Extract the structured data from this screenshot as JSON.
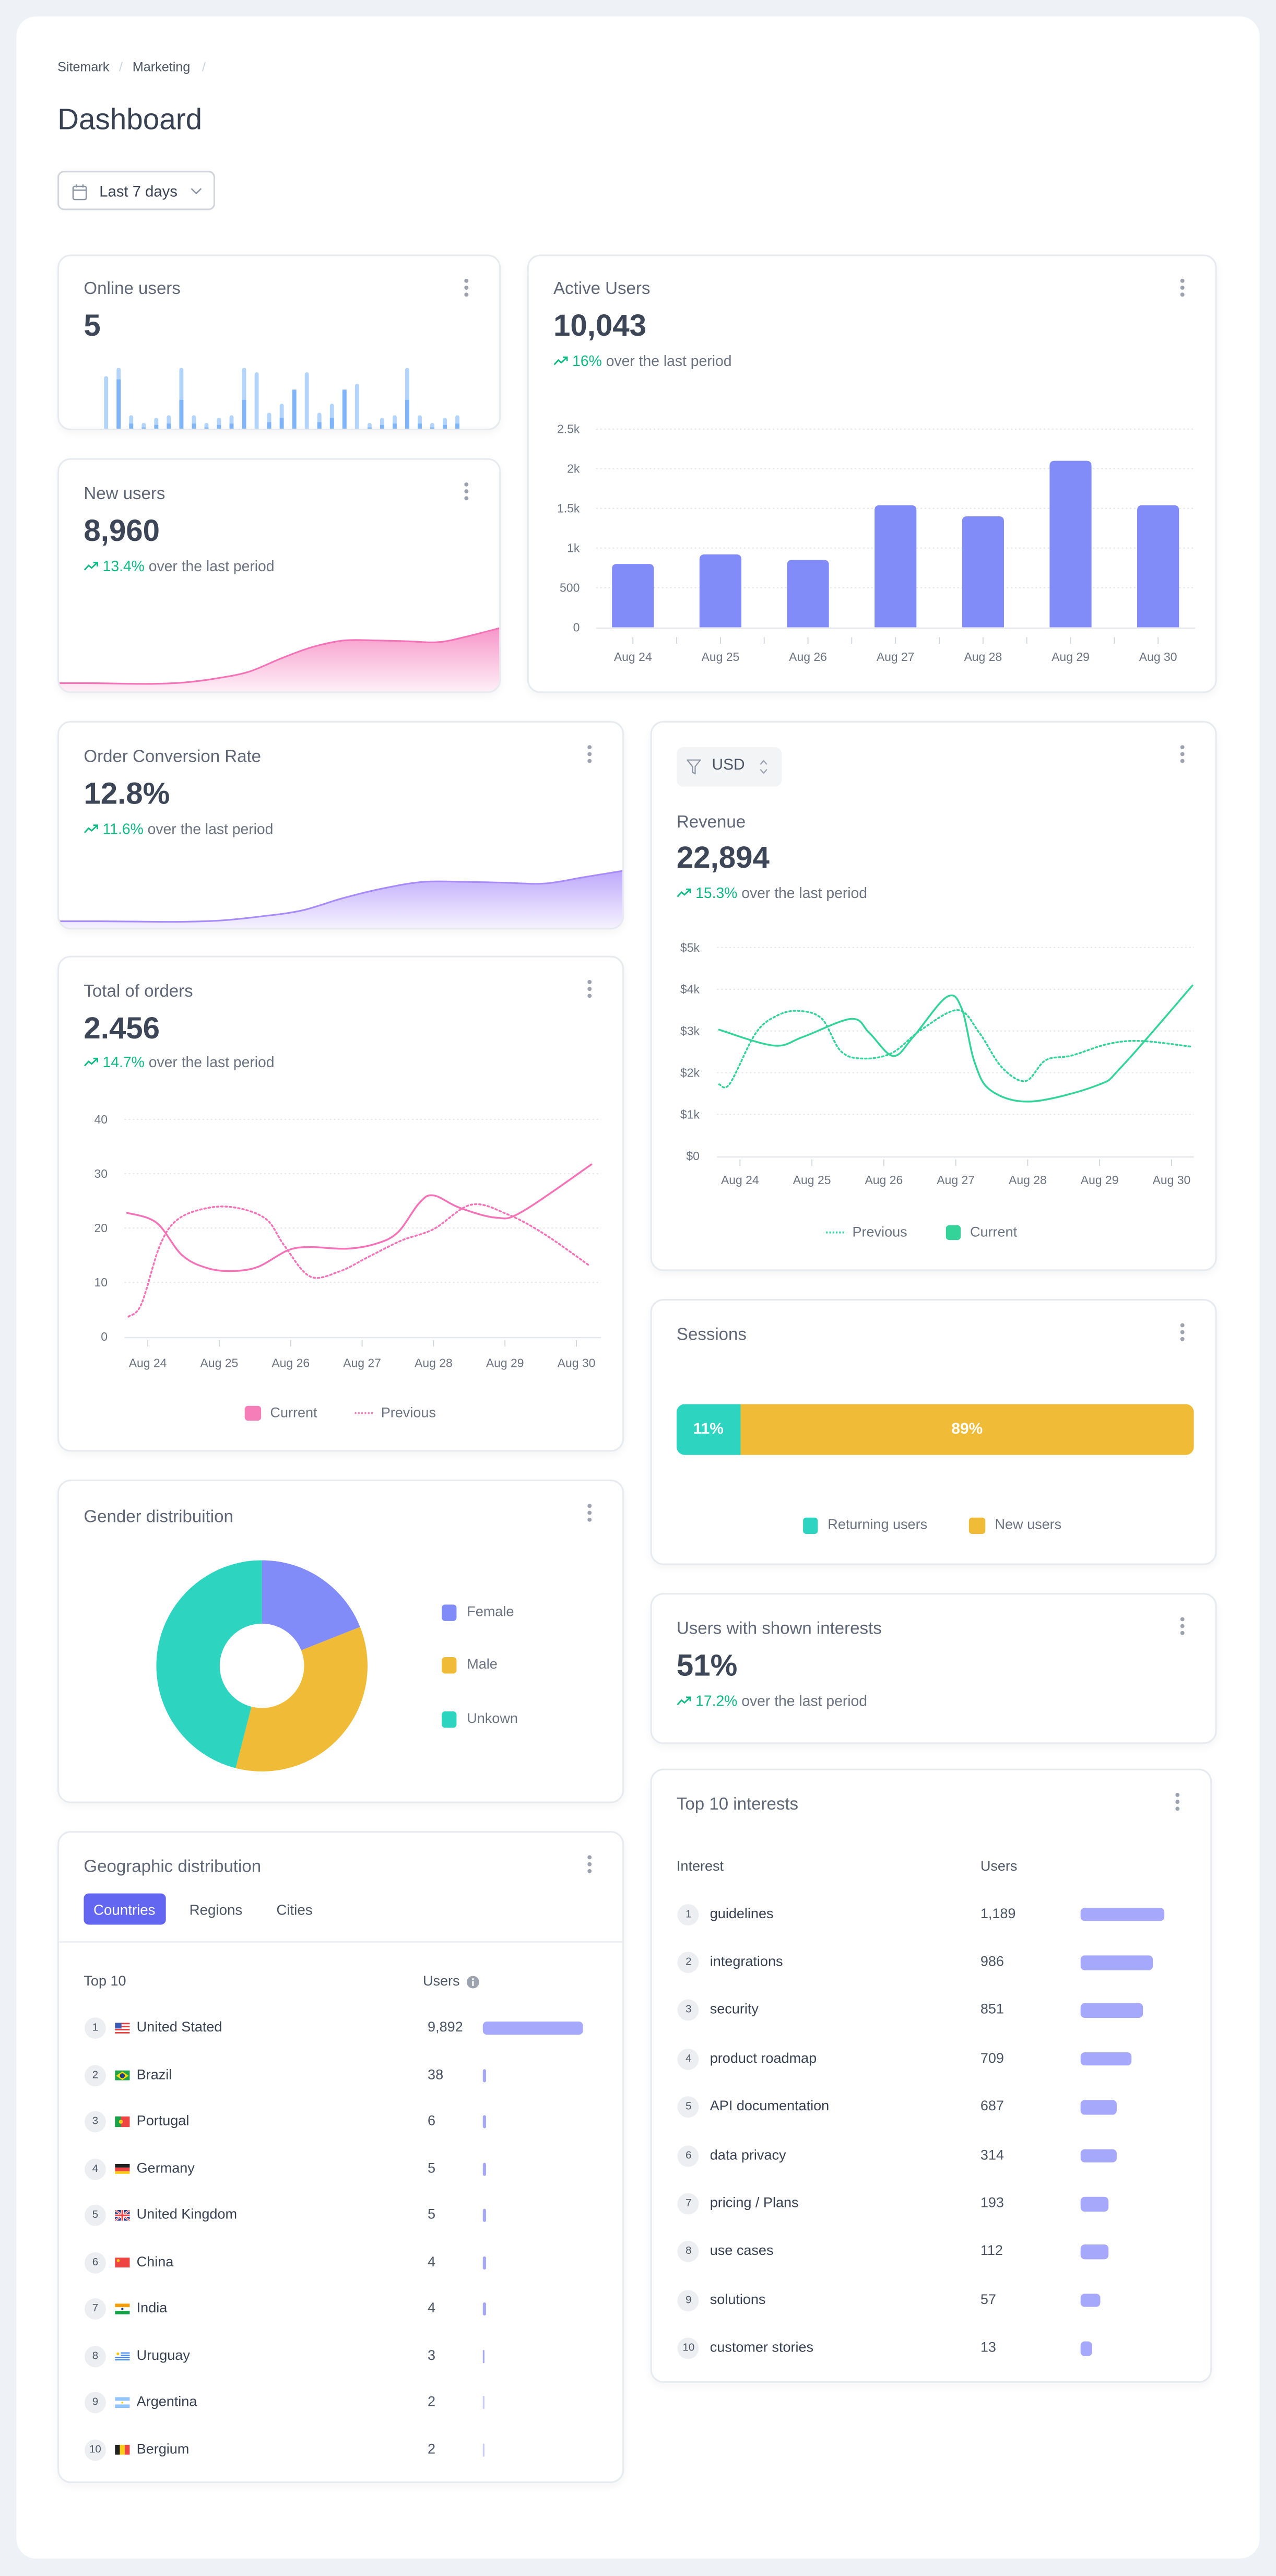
{
  "breadcrumb": [
    "Sitemark",
    "Marketing"
  ],
  "page_title": "Dashboard",
  "date_filter": {
    "label": "Last 7 days",
    "icon": "calendar-icon"
  },
  "colors": {
    "background": "#eef2f7",
    "positive": "#10b981",
    "indigo": "#818cf8",
    "pink": "#f472b6",
    "purple": "#a78bfa",
    "teal": "#2dd4bf",
    "green": "#34d399",
    "yellow": "#f0bc37",
    "online_light": "#b3d4fb",
    "online_dark": "#7fb5f8",
    "tab_active": "#6366f1",
    "row_bar": "#a5a8fb"
  },
  "online_users": {
    "title": "Online users",
    "value": "5"
  },
  "new_users": {
    "title": "New users",
    "value": "8,960",
    "trend": "13.4%",
    "trend_text": "over the last period"
  },
  "active_users": {
    "title": "Active Users",
    "value": "10,043",
    "trend": "16%",
    "trend_text": "over the last period"
  },
  "conversion": {
    "title": "Order Conversion Rate",
    "value": "12.8%",
    "trend": "11.6%",
    "trend_text": "over the last period"
  },
  "orders": {
    "title": "Total of orders",
    "value": "2.456",
    "trend": "14.7%",
    "trend_text": "over the last period"
  },
  "revenue": {
    "currency": "USD",
    "title": "Revenue",
    "value": "22,894",
    "trend": "15.3%",
    "trend_text": "over the last period"
  },
  "sessions": {
    "title": "Sessions"
  },
  "gender": {
    "title": "Gender distribuition"
  },
  "interest_users": {
    "title": "Users with shown interests",
    "value": "51%",
    "trend": "17.2%",
    "trend_text": "over the last period"
  },
  "geo": {
    "title": "Geographic distribution",
    "tabs": [
      {
        "label": "Countries",
        "active": true
      },
      {
        "label": "Regions",
        "active": false
      },
      {
        "label": "Cities",
        "active": false
      }
    ],
    "col_name": "Top 10",
    "col_users": "Users",
    "rows": [
      {
        "rank": "1",
        "flag": "us",
        "name": "United Stated",
        "users": "9,892",
        "bar_fill": 1.0
      },
      {
        "rank": "2",
        "flag": "br",
        "name": "Brazil",
        "users": "38",
        "bar_fill": 0.03
      },
      {
        "rank": "3",
        "flag": "pt",
        "name": "Portugal",
        "users": "6",
        "bar_fill": 0.03
      },
      {
        "rank": "4",
        "flag": "de",
        "name": "Germany",
        "users": "5",
        "bar_fill": 0.03
      },
      {
        "rank": "5",
        "flag": "gb",
        "name": "United Kingdom",
        "users": "5",
        "bar_fill": 0.03
      },
      {
        "rank": "6",
        "flag": "cn",
        "name": "China",
        "users": "4",
        "bar_fill": 0.03
      },
      {
        "rank": "7",
        "flag": "in",
        "name": "India",
        "users": "4",
        "bar_fill": 0.03
      },
      {
        "rank": "8",
        "flag": "uy",
        "name": "Uruguay",
        "users": "3",
        "bar_fill": 0.025
      },
      {
        "rank": "9",
        "flag": "ar",
        "name": "Argentina",
        "users": "2",
        "bar_fill": 0.015
      },
      {
        "rank": "10",
        "flag": "be",
        "name": "Bergium",
        "users": "2",
        "bar_fill": 0.015
      }
    ]
  },
  "interests": {
    "title": "Top 10 interests",
    "col_name": "Interest",
    "col_users": "Users",
    "rows": [
      {
        "rank": "1",
        "name": "guidelines",
        "users": "1,189",
        "bar_fill": 1.0
      },
      {
        "rank": "2",
        "name": "integrations",
        "users": "986",
        "bar_fill": 0.87
      },
      {
        "rank": "3",
        "name": "security",
        "users": "851",
        "bar_fill": 0.75
      },
      {
        "rank": "4",
        "name": "product roadmap",
        "users": "709",
        "bar_fill": 0.62
      },
      {
        "rank": "5",
        "name": "API documentation",
        "users": "687",
        "bar_fill": 0.44
      },
      {
        "rank": "6",
        "name": "data privacy",
        "users": "314",
        "bar_fill": 0.44
      },
      {
        "rank": "7",
        "name": "pricing / Plans",
        "users": "193",
        "bar_fill": 0.34
      },
      {
        "rank": "8",
        "name": "use cases",
        "users": "112",
        "bar_fill": 0.34
      },
      {
        "rank": "9",
        "name": "solutions",
        "users": "57",
        "bar_fill": 0.25
      },
      {
        "rank": "10",
        "name": "customer stories",
        "users": "13",
        "bar_fill": 0.15
      }
    ]
  },
  "chart_data": [
    {
      "type": "bar",
      "values": [
        87,
        100,
        26,
        14,
        22,
        26,
        100,
        26,
        14,
        22,
        26,
        100,
        93,
        30,
        44,
        66,
        93,
        30,
        44,
        66,
        75,
        14,
        22,
        26,
        100,
        26,
        14,
        22,
        26
      ],
      "highlighted": [
        0,
        82,
        13,
        7,
        11,
        13,
        50,
        13,
        7,
        11,
        13,
        50,
        0,
        15,
        22,
        66,
        0,
        15,
        22,
        66,
        0,
        7,
        11,
        13,
        50,
        13,
        7,
        11,
        13
      ],
      "ylim": [
        0,
        100
      ]
    },
    {
      "type": "area",
      "values": [
        7,
        7,
        6.7,
        6.6,
        7.5,
        10,
        14,
        22,
        29,
        33,
        33,
        32.5,
        32,
        36,
        41
      ]
    },
    {
      "type": "bar",
      "categories": [
        "Aug 24",
        "Aug 25",
        "Aug 26",
        "Aug 27",
        "Aug 28",
        "Aug 29",
        "Aug 30"
      ],
      "values": [
        800,
        920,
        850,
        1540,
        1400,
        2100,
        1540
      ],
      "yticks": [
        "0",
        "500",
        "1k",
        "1.5k",
        "2k",
        "2.5k"
      ],
      "ylim": [
        0,
        2500
      ],
      "grid": true
    },
    {
      "type": "area",
      "values": [
        6,
        6,
        5.8,
        5.7,
        6.5,
        9,
        12.6,
        20,
        26,
        30,
        30,
        29.5,
        29,
        33,
        37
      ]
    },
    {
      "type": "line",
      "categories": [
        "Aug 24",
        "Aug 25",
        "Aug 26",
        "Aug 27",
        "Aug 28",
        "Aug 29",
        "Aug 30"
      ],
      "yticks": [
        "0",
        "10",
        "20",
        "30",
        "40"
      ],
      "ylim": [
        0,
        40
      ],
      "grid": true,
      "legend": "bottom",
      "series": [
        {
          "name": "Current",
          "style": "solid",
          "x": [
            23.71,
            24.12,
            24.48,
            24.84,
            25.2,
            25.55,
            25.96,
            26.27,
            26.78,
            27.19,
            27.5,
            27.8,
            28.0,
            28.37,
            28.88,
            29.24,
            30.21
          ],
          "y": [
            22.8,
            21,
            15,
            12.6,
            12.1,
            12.9,
            15.9,
            16.5,
            16.2,
            17.1,
            19.2,
            24.6,
            26,
            23.7,
            21.9,
            23,
            31.7
          ]
        },
        {
          "name": "Previous",
          "style": "dotted",
          "x": [
            23.73,
            23.91,
            24.17,
            24.42,
            24.84,
            25.25,
            25.66,
            25.91,
            26.27,
            26.68,
            27.09,
            27.55,
            28.0,
            28.53,
            29.04,
            29.55,
            30.17
          ],
          "y": [
            3.7,
            6,
            16.8,
            21.6,
            23.7,
            23.7,
            21.6,
            16.8,
            11.1,
            12,
            14.7,
            17.7,
            19.8,
            24.3,
            22.5,
            18.9,
            13.2
          ]
        }
      ]
    },
    {
      "type": "line",
      "categories": [
        "Aug 24",
        "Aug 25",
        "Aug 26",
        "Aug 27",
        "Aug 28",
        "Aug 29",
        "Aug 30"
      ],
      "yticks": [
        "$0",
        "$1k",
        "$2k",
        "$3k",
        "$4k",
        "$5k"
      ],
      "ylim": [
        0,
        5000
      ],
      "grid": true,
      "legend": "bottom",
      "series": [
        {
          "name": "Previous",
          "style": "dotted",
          "x": [
            23.71,
            23.86,
            24.22,
            24.53,
            24.83,
            25.14,
            25.4,
            25.7,
            26.11,
            26.52,
            27.03,
            27.33,
            27.64,
            27.97,
            28.25,
            28.61,
            29.12,
            29.58,
            30.29
          ],
          "y": [
            1720,
            1740,
            2950,
            3380,
            3480,
            3290,
            2520,
            2340,
            2470,
            3030,
            3500,
            2950,
            2130,
            1800,
            2300,
            2410,
            2690,
            2760,
            2620
          ]
        },
        {
          "name": "Current",
          "style": "solid",
          "x": [
            23.71,
            24.47,
            24.88,
            25.55,
            25.8,
            26.13,
            26.41,
            26.87,
            27.08,
            27.26,
            27.49,
            28.05,
            28.97,
            29.32,
            30.29
          ],
          "y": [
            3030,
            2650,
            2860,
            3290,
            2950,
            2400,
            2860,
            3810,
            3550,
            2260,
            1570,
            1310,
            1700,
            2170,
            4090
          ]
        }
      ]
    },
    {
      "type": "bar",
      "stacked": true,
      "series": [
        {
          "name": "Returning users",
          "value": 11,
          "label": "11%"
        },
        {
          "name": "New users",
          "value": 89,
          "label": "89%"
        }
      ],
      "legend": "bottom"
    },
    {
      "type": "pie",
      "donut": true,
      "categories": [
        "Female",
        "Male",
        "Unkown"
      ],
      "values": [
        19,
        35,
        46
      ],
      "legend": "right"
    }
  ]
}
